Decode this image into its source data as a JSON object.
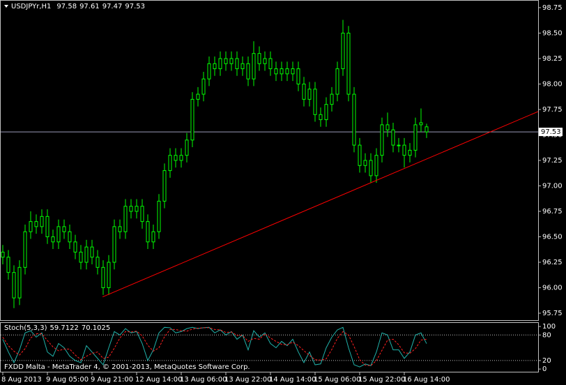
{
  "chart_data": [
    {
      "type": "candlestick",
      "title": "USDJPYr,H1",
      "color": "#00ff00",
      "candles": [
        [
          96.35,
          96.42,
          96.23,
          96.3
        ],
        [
          96.3,
          96.37,
          96.08,
          96.15
        ],
        [
          96.15,
          96.22,
          95.8,
          95.9
        ],
        [
          95.9,
          96.27,
          95.83,
          96.2
        ],
        [
          96.2,
          96.62,
          96.13,
          96.55
        ],
        [
          96.55,
          96.75,
          96.48,
          96.65
        ],
        [
          96.65,
          96.72,
          96.53,
          96.6
        ],
        [
          96.6,
          96.77,
          96.53,
          96.7
        ],
        [
          96.7,
          96.77,
          96.43,
          96.5
        ],
        [
          96.5,
          96.57,
          96.38,
          96.45
        ],
        [
          96.45,
          96.67,
          96.38,
          96.6
        ],
        [
          96.6,
          96.67,
          96.48,
          96.55
        ],
        [
          96.55,
          96.62,
          96.38,
          96.45
        ],
        [
          96.45,
          96.52,
          96.28,
          96.35
        ],
        [
          96.35,
          96.42,
          96.18,
          96.25
        ],
        [
          96.25,
          96.47,
          96.18,
          96.4
        ],
        [
          96.4,
          96.47,
          96.23,
          96.3
        ],
        [
          96.3,
          96.37,
          96.13,
          96.2
        ],
        [
          96.2,
          96.27,
          95.93,
          96.0
        ],
        [
          96.0,
          96.32,
          95.93,
          96.25
        ],
        [
          96.25,
          96.67,
          96.18,
          96.6
        ],
        [
          96.6,
          96.67,
          96.48,
          96.55
        ],
        [
          96.55,
          96.87,
          96.48,
          96.8
        ],
        [
          96.8,
          96.87,
          96.68,
          96.75
        ],
        [
          96.75,
          96.87,
          96.68,
          96.8
        ],
        [
          96.8,
          96.87,
          96.58,
          96.65
        ],
        [
          96.65,
          96.72,
          96.38,
          96.45
        ],
        [
          96.45,
          96.62,
          96.38,
          96.55
        ],
        [
          96.55,
          96.92,
          96.48,
          96.85
        ],
        [
          96.85,
          97.22,
          96.78,
          97.15
        ],
        [
          97.15,
          97.37,
          97.08,
          97.3
        ],
        [
          97.3,
          97.37,
          97.18,
          97.25
        ],
        [
          97.25,
          97.37,
          97.18,
          97.3
        ],
        [
          97.3,
          97.52,
          97.23,
          97.45
        ],
        [
          97.45,
          97.92,
          97.38,
          97.85
        ],
        [
          97.85,
          97.97,
          97.78,
          97.9
        ],
        [
          97.9,
          98.12,
          97.83,
          98.05
        ],
        [
          98.05,
          98.27,
          97.98,
          98.2
        ],
        [
          98.2,
          98.27,
          98.08,
          98.15
        ],
        [
          98.15,
          98.32,
          98.08,
          98.25
        ],
        [
          98.25,
          98.32,
          98.13,
          98.2
        ],
        [
          98.2,
          98.32,
          98.13,
          98.25
        ],
        [
          98.25,
          98.32,
          98.08,
          98.15
        ],
        [
          98.15,
          98.27,
          98.08,
          98.2
        ],
        [
          98.2,
          98.27,
          97.98,
          98.05
        ],
        [
          98.05,
          98.42,
          97.98,
          98.3
        ],
        [
          98.3,
          98.37,
          98.13,
          98.2
        ],
        [
          98.2,
          98.32,
          98.13,
          98.25
        ],
        [
          98.25,
          98.32,
          98.08,
          98.15
        ],
        [
          98.15,
          98.22,
          98.03,
          98.1
        ],
        [
          98.1,
          98.22,
          98.03,
          98.15
        ],
        [
          98.15,
          98.22,
          98.03,
          98.1
        ],
        [
          98.1,
          98.22,
          98.03,
          98.15
        ],
        [
          98.15,
          98.22,
          97.93,
          98.0
        ],
        [
          98.0,
          98.07,
          97.78,
          97.85
        ],
        [
          97.85,
          98.02,
          97.78,
          97.95
        ],
        [
          97.95,
          98.02,
          97.63,
          97.7
        ],
        [
          97.7,
          97.77,
          97.58,
          97.65
        ],
        [
          97.65,
          97.87,
          97.58,
          97.8
        ],
        [
          97.8,
          97.97,
          97.73,
          97.9
        ],
        [
          97.9,
          98.22,
          97.83,
          98.15
        ],
        [
          98.15,
          98.63,
          98.08,
          98.5
        ],
        [
          98.5,
          98.57,
          97.83,
          97.9
        ],
        [
          97.9,
          97.97,
          97.33,
          97.4
        ],
        [
          97.4,
          97.47,
          97.13,
          97.2
        ],
        [
          97.2,
          97.32,
          97.13,
          97.25
        ],
        [
          97.25,
          97.32,
          97.03,
          97.1
        ],
        [
          97.1,
          97.37,
          97.03,
          97.3
        ],
        [
          97.3,
          97.67,
          97.23,
          97.6
        ],
        [
          97.6,
          97.72,
          97.48,
          97.55
        ],
        [
          97.55,
          97.62,
          97.33,
          97.4
        ],
        [
          97.4,
          97.47,
          97.33,
          97.4
        ],
        [
          97.4,
          97.47,
          97.18,
          97.3
        ],
        [
          97.3,
          97.42,
          97.23,
          97.35
        ],
        [
          97.35,
          97.67,
          97.28,
          97.6
        ],
        [
          97.6,
          97.76,
          97.53,
          97.62
        ],
        [
          97.58,
          97.61,
          97.47,
          97.53
        ]
      ],
      "xlim": [
        -0.5,
        96
      ],
      "xticks": [
        {
          "value": 0,
          "label": "8 Aug 2013"
        },
        {
          "value": 8,
          "label": "9 Aug 05:00"
        },
        {
          "value": 16,
          "label": "9 Aug 21:00"
        },
        {
          "value": 24,
          "label": "12 Aug 14:00"
        },
        {
          "value": 32,
          "label": "13 Aug 06:00"
        },
        {
          "value": 40,
          "label": "13 Aug 22:00"
        },
        {
          "value": 48,
          "label": "14 Aug 14:00"
        },
        {
          "value": 56,
          "label": "15 Aug 06:00"
        },
        {
          "value": 64,
          "label": "15 Aug 22:00"
        },
        {
          "value": 72,
          "label": "16 Aug 14:00"
        }
      ],
      "ylim": [
        95.675,
        98.825
      ],
      "yticks": [
        98.75,
        {
          "value": 98.5,
          "label": "98.50"
        },
        98.25,
        {
          "value": 98,
          "label": "98.00"
        },
        97.75,
        {
          "value": 97.5,
          "label": "97.50"
        },
        97.25,
        {
          "value": 97,
          "label": "97.00"
        },
        96.75,
        {
          "value": 96.5,
          "label": "96.50"
        },
        96.25,
        {
          "value": 96,
          "label": "96.00"
        },
        95.75
      ],
      "trendline": {
        "color": "#ff0000",
        "x": [
          17.9,
          96
        ],
        "y": [
          95.91,
          97.73
        ]
      }
    },
    {
      "type": "line",
      "title": "Stoch(5,3,3)",
      "ylim": [
        -8,
        110
      ],
      "yticks": [
        100,
        80,
        20,
        0
      ],
      "levels": [
        80,
        20
      ],
      "series": [
        {
          "color": "#20b2aa",
          "values": [
            70,
            40,
            15,
            45,
            85,
            90,
            75,
            85,
            40,
            30,
            60,
            50,
            30,
            20,
            15,
            55,
            40,
            25,
            10,
            50,
            88,
            80,
            95,
            85,
            88,
            60,
            20,
            45,
            85,
            98,
            97,
            85,
            88,
            95,
            98,
            95,
            97,
            98,
            85,
            92,
            80,
            88,
            70,
            80,
            45,
            90,
            75,
            85,
            60,
            50,
            65,
            55,
            70,
            40,
            15,
            40,
            10,
            12,
            50,
            75,
            92,
            98,
            50,
            10,
            5,
            12,
            8,
            40,
            85,
            80,
            45,
            45,
            25,
            40,
            80,
            85,
            59.7122
          ]
        },
        {
          "color": "#ff2020",
          "values": [
            75,
            55,
            42,
            33,
            48,
            73,
            83,
            83,
            67,
            52,
            43,
            47,
            47,
            33,
            22,
            30,
            37,
            40,
            25,
            28,
            49,
            73,
            88,
            87,
            89,
            78,
            56,
            42,
            50,
            76,
            93,
            93,
            90,
            89,
            94,
            96,
            97,
            97,
            93,
            92,
            86,
            87,
            79,
            79,
            65,
            72,
            70,
            83,
            73,
            65,
            58,
            57,
            63,
            55,
            43,
            32,
            22,
            21,
            24,
            46,
            72,
            88,
            80,
            53,
            22,
            9,
            8,
            20,
            44,
            68,
            70,
            57,
            38,
            37,
            48,
            68,
            70.1025
          ]
        }
      ]
    }
  ],
  "footer": "FXDD Malta - MetaTrader 4, © 2001-2013, MetaQuotes Software Corp."
}
